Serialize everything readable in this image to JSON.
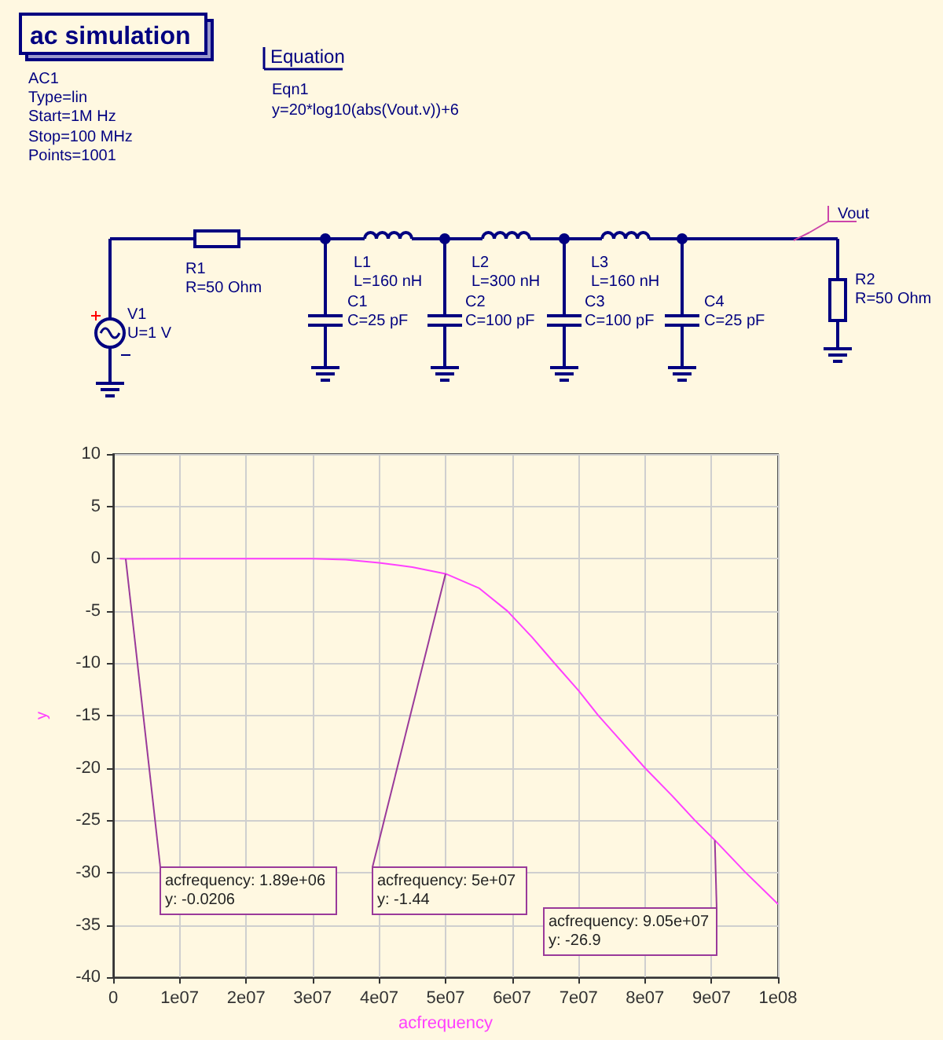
{
  "chart_data": {
    "type": "line",
    "xlabel": "acfrequency",
    "ylabel": "y",
    "x": [
      1000000,
      1890000,
      10000000,
      20000000,
      30000000,
      35000000,
      40000000,
      45000000,
      50000000,
      55000000,
      59300000,
      63000000,
      66400000,
      70000000,
      73000000,
      76500000,
      80000000,
      84000000,
      87500000,
      90500000,
      95000000,
      100000000
    ],
    "series": [
      {
        "color": "#ff40ff",
        "values": [
          0,
          -0.0206,
          0,
          0,
          0,
          -0.1,
          -0.4,
          -0.8,
          -1.44,
          -2.8,
          -5,
          -7.5,
          -10,
          -12.6,
          -15,
          -17.5,
          -20,
          -22.6,
          -25,
          -26.9,
          -29.9,
          -33
        ]
      }
    ],
    "xlim": [
      0,
      100000000
    ],
    "xticks": [
      0,
      {
        "value": 10000000,
        "label": "1e07"
      },
      {
        "value": 20000000,
        "label": "2e07"
      },
      {
        "value": 30000000,
        "label": "3e07"
      },
      {
        "value": 40000000,
        "label": "4e07"
      },
      {
        "value": 50000000,
        "label": "5e07"
      },
      {
        "value": 60000000,
        "label": "6e07"
      },
      {
        "value": 70000000,
        "label": "7e07"
      },
      {
        "value": 80000000,
        "label": "8e07"
      },
      {
        "value": 90000000,
        "label": "9e07"
      },
      {
        "value": 100000000,
        "label": "1e08"
      }
    ],
    "ylim": [
      -40,
      10
    ],
    "yticks": [
      -40,
      -35,
      -30,
      -25,
      -20,
      -15,
      -10,
      -5,
      0,
      5,
      10
    ],
    "grid": true,
    "marker": "none",
    "line_style": "solid",
    "annotations": [
      "ac simulation",
      "AC1",
      "Type=lin",
      "Start=1M Hz",
      "Stop=100 MHz",
      "Points=1001",
      "Equation",
      "Eqn1",
      "y=20*log10(abs(Vout.v))+6",
      "R1",
      "R=50 Ohm",
      "V1",
      "U=1 V",
      "L1",
      "L=160 nH",
      "L2",
      "L=300 nH",
      "L3",
      "L=160 nH",
      "C1",
      "C=25 pF",
      "C2",
      "C=100 pF",
      "C3",
      "C=100 pF",
      "C4",
      "C=25 pF",
      "Vout",
      "R2",
      "R=50 Ohm",
      {
        "text": "acfrequency: 1.89e+06\ny: -0.0206",
        "x": 1890000,
        "y": -0.0206
      },
      {
        "text": "acfrequency: 5e+07\ny: -1.44",
        "x": 50000000,
        "y": -1.44
      },
      {
        "text": "acfrequency: 9.05e+07\ny: -26.9",
        "x": 90500000,
        "y": -26.9
      }
    ]
  }
}
